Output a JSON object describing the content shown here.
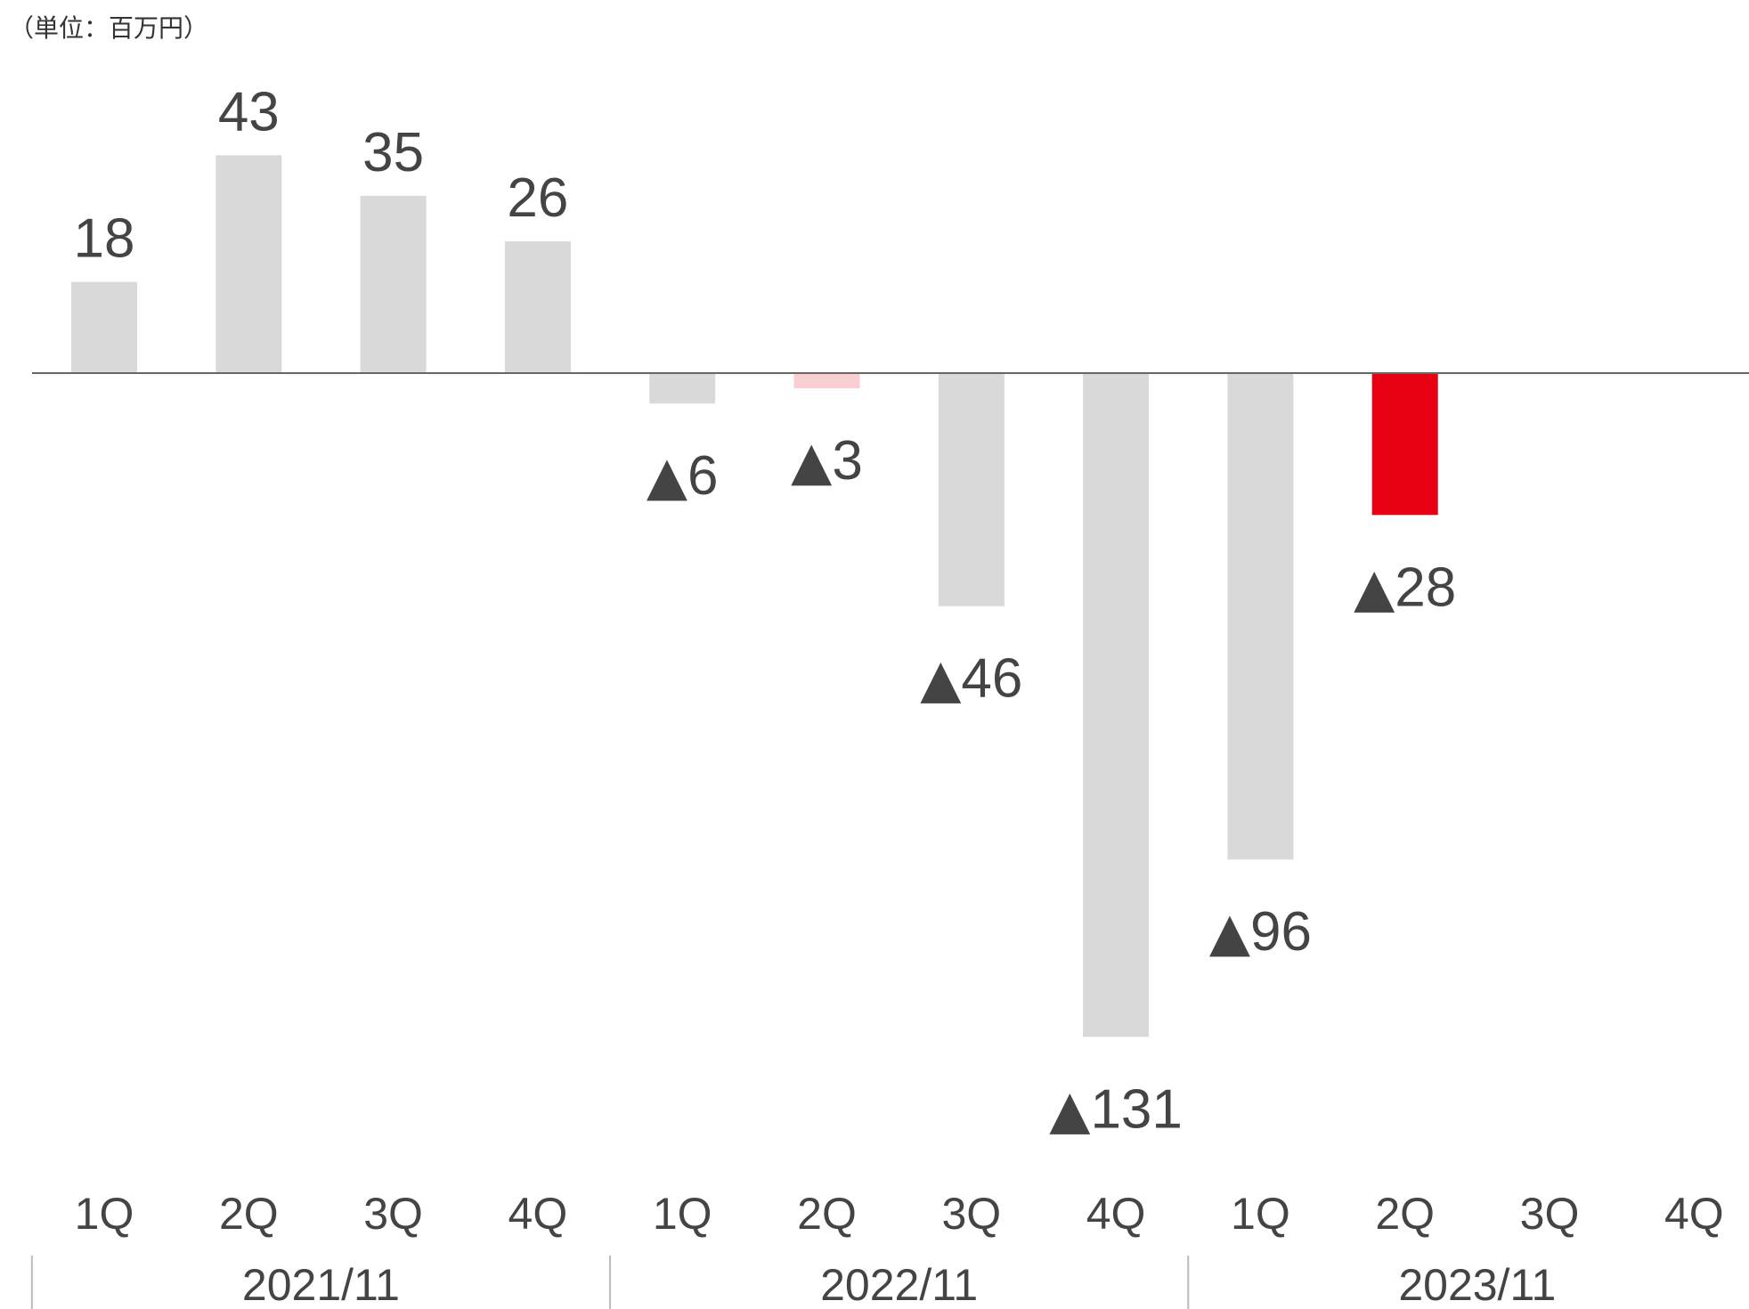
{
  "unit_label": "（単位：百万円）",
  "colors": {
    "bar_default": "#d9d9d9",
    "bar_highlight": "#e60012",
    "bar_highlight_light": "#f9cfd2",
    "text": "#444444",
    "axis_line": "#666666",
    "divider": "#bbbbbb"
  },
  "negative_marker": "▲",
  "chart_data": {
    "type": "bar",
    "title": "",
    "xlabel": "",
    "ylabel": "",
    "categories": [
      "1Q",
      "2Q",
      "3Q",
      "4Q",
      "1Q",
      "2Q",
      "3Q",
      "4Q",
      "1Q",
      "2Q",
      "3Q",
      "4Q"
    ],
    "groups": [
      {
        "label": "2021/11",
        "quarters": 4
      },
      {
        "label": "2022/11",
        "quarters": 4
      },
      {
        "label": "2023/11",
        "quarters": 4
      }
    ],
    "values": [
      18,
      43,
      35,
      26,
      -6,
      -3,
      -46,
      -131,
      -96,
      -28,
      null,
      null
    ],
    "bar_colors": [
      "default",
      "default",
      "default",
      "default",
      "default",
      "highlight_light",
      "default",
      "default",
      "default",
      "highlight",
      "default",
      "default"
    ],
    "data_labels": [
      "18",
      "43",
      "35",
      "26",
      "6",
      "3",
      "46",
      "131",
      "96",
      "28",
      "",
      ""
    ],
    "ylim": [
      -150,
      60
    ],
    "grid": false,
    "legend": "none"
  }
}
